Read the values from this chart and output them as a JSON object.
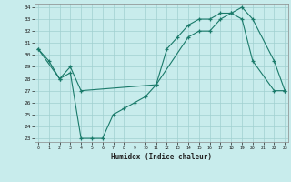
{
  "xlabel": "Humidex (Indice chaleur)",
  "bg_color": "#c8ecec",
  "grid_color": "#a0d0d0",
  "line_color": "#1a7a6a",
  "series1_x": [
    0,
    1,
    2,
    3,
    4,
    5,
    6,
    7,
    8,
    9,
    10,
    11,
    12,
    13,
    14,
    15,
    16,
    17,
    18,
    19,
    20,
    22,
    23
  ],
  "series1_y": [
    30.5,
    29.5,
    28.0,
    28.5,
    23.0,
    23.0,
    23.0,
    25.0,
    25.5,
    26.0,
    26.5,
    27.5,
    30.5,
    31.5,
    32.5,
    33.0,
    33.0,
    33.5,
    33.5,
    33.0,
    29.5,
    27.0,
    27.0
  ],
  "series2_x": [
    0,
    2,
    3,
    4,
    11,
    14,
    15,
    16,
    17,
    18,
    19,
    20,
    22,
    23
  ],
  "series2_y": [
    30.5,
    28.0,
    29.0,
    27.0,
    27.5,
    31.5,
    32.0,
    32.0,
    33.0,
    33.5,
    34.0,
    33.0,
    29.5,
    27.0
  ],
  "xlim": [
    0,
    23
  ],
  "ylim": [
    23,
    34
  ],
  "yticks": [
    23,
    24,
    25,
    26,
    27,
    28,
    29,
    30,
    31,
    32,
    33,
    34
  ],
  "xticks": [
    0,
    1,
    2,
    3,
    4,
    5,
    6,
    7,
    8,
    9,
    10,
    11,
    12,
    13,
    14,
    15,
    16,
    17,
    18,
    19,
    20,
    21,
    22,
    23
  ]
}
